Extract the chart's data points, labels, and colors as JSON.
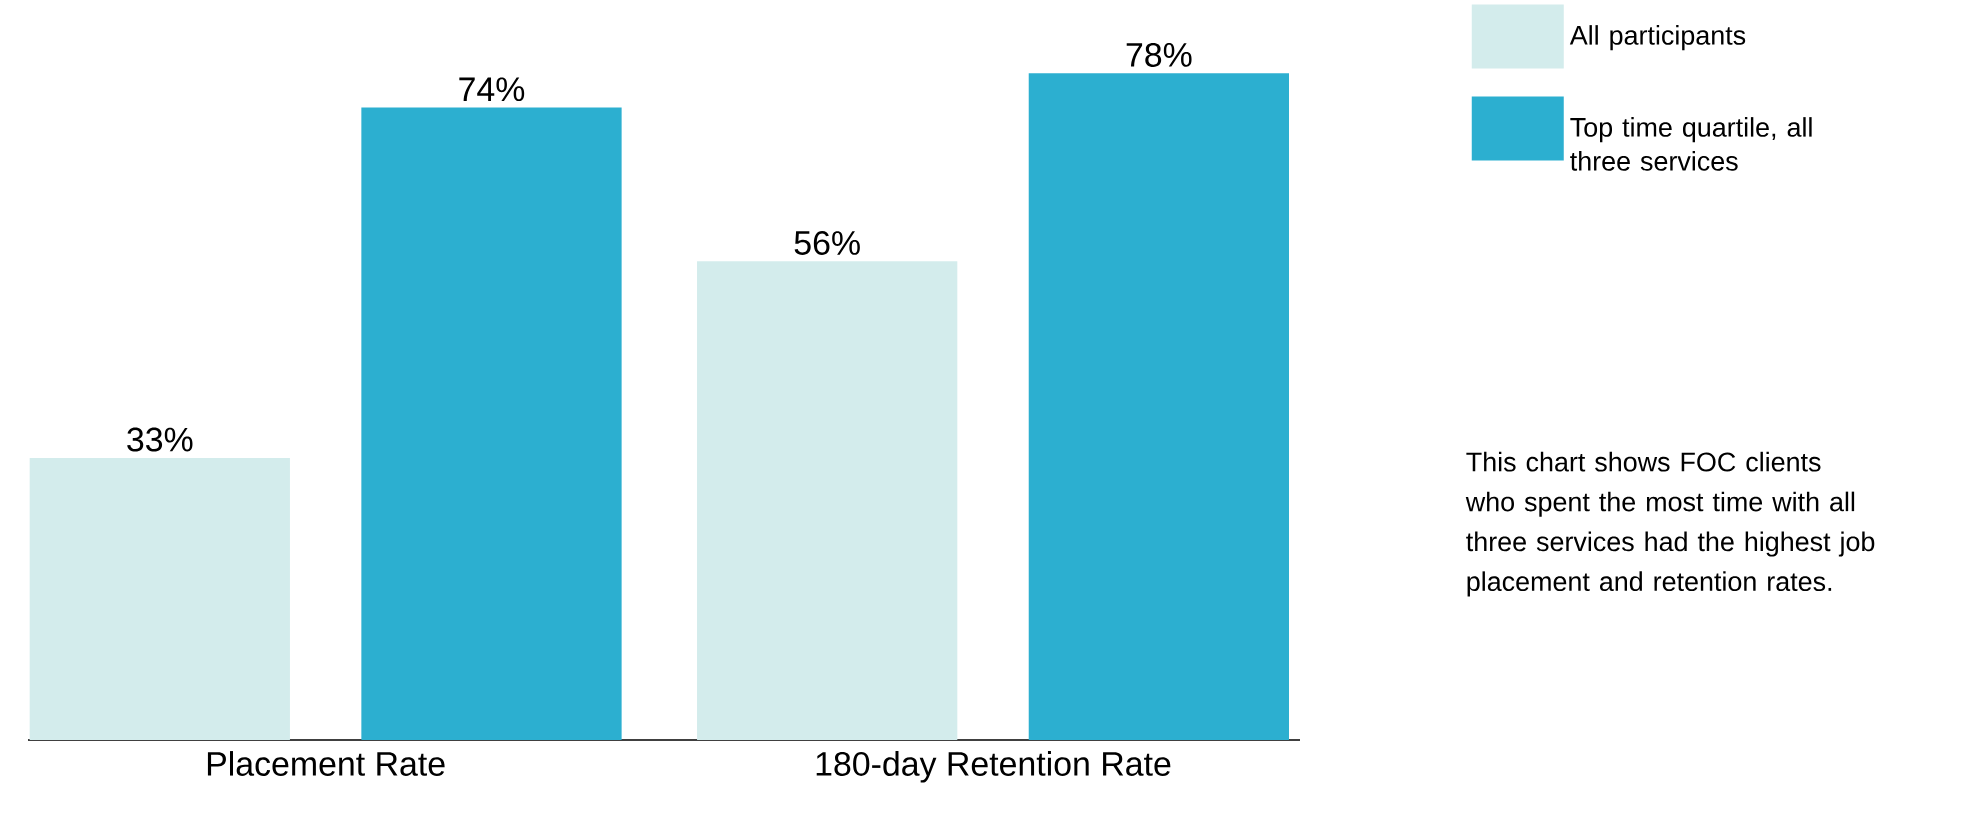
{
  "chart_data": {
    "type": "bar",
    "categories": [
      "Placement Rate",
      "180-day Retention Rate"
    ],
    "series": [
      {
        "name": "All participants",
        "color": "#d3ecec",
        "values": [
          33,
          56
        ],
        "value_labels": [
          "33%",
          "56%"
        ]
      },
      {
        "name": "Top time quartile, all three services",
        "color": "#2cafd0",
        "values": [
          74,
          78
        ],
        "value_labels": [
          "74%",
          "78%"
        ]
      }
    ],
    "legend": "top right",
    "annotations": [
      "This chart shows FOC clients who spent the most time with all three services had the highest job placement and retention rates."
    ]
  }
}
